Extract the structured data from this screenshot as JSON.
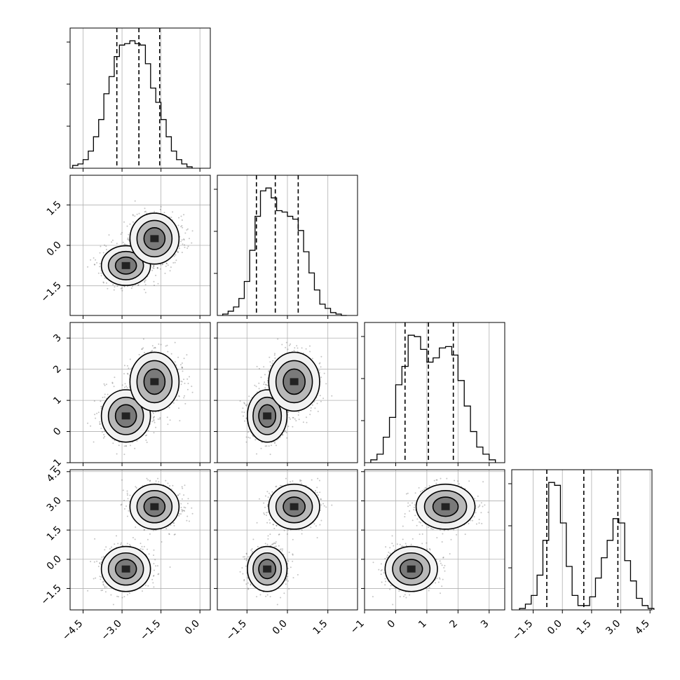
{
  "chart_data": {
    "type": "corner",
    "grid": true,
    "parameters": 4,
    "quantiles": [
      0.16,
      0.5,
      0.84
    ],
    "ranges": [
      [
        -5.0,
        0.4
      ],
      [
        -2.6,
        2.6
      ],
      [
        -1.0,
        3.5
      ],
      [
        -2.6,
        4.6
      ]
    ],
    "ticks": [
      {
        "values": [
          -4.5,
          -3.0,
          -1.5,
          0.0
        ],
        "labels": [
          "−4.5",
          "−3.0",
          "−1.5",
          "0.0"
        ]
      },
      {
        "values": [
          -1.5,
          0.0,
          1.5
        ],
        "labels": [
          "−1.5",
          "0.0",
          "1.5"
        ]
      },
      {
        "values": [
          -1,
          0,
          1,
          2,
          3
        ],
        "labels": [
          "−1",
          "0",
          "1",
          "2",
          "3"
        ]
      },
      {
        "values": [
          -1.5,
          0.0,
          1.5,
          3.0,
          4.5
        ],
        "labels": [
          "−1.5",
          "0.0",
          "1.5",
          "3.0",
          "4.5"
        ]
      }
    ],
    "histograms": [
      {
        "param": 0,
        "bin_edges": [
          -4.9,
          -4.7,
          -4.5,
          -4.3,
          -4.1,
          -3.9,
          -3.7,
          -3.5,
          -3.3,
          -3.1,
          -2.9,
          -2.7,
          -2.5,
          -2.3,
          -2.1,
          -1.9,
          -1.7,
          -1.5,
          -1.3,
          -1.1,
          -0.9,
          -0.7,
          -0.5,
          -0.3
        ],
        "counts": [
          2,
          3,
          6,
          12,
          22,
          34,
          52,
          64,
          78,
          86,
          87,
          89,
          87,
          86,
          73,
          56,
          46,
          34,
          22,
          12,
          6,
          3,
          1
        ],
        "quantiles": [
          -3.2,
          -2.35,
          -1.55
        ]
      },
      {
        "param": 1,
        "bin_edges": [
          -2.4,
          -2.2,
          -2.0,
          -1.8,
          -1.6,
          -1.4,
          -1.2,
          -1.0,
          -0.8,
          -0.6,
          -0.4,
          -0.2,
          0.0,
          0.2,
          0.4,
          0.6,
          0.8,
          1.0,
          1.2,
          1.4,
          1.6,
          1.8,
          2.0,
          2.2
        ],
        "counts": [
          1,
          3,
          6,
          12,
          24,
          46,
          70,
          88,
          90,
          83,
          74,
          73,
          70,
          68,
          60,
          45,
          30,
          18,
          8,
          5,
          2,
          1,
          0
        ],
        "quantiles": [
          -1.15,
          -0.45,
          0.4
        ]
      },
      {
        "param": 2,
        "bin_edges": [
          -0.8,
          -0.6,
          -0.4,
          -0.2,
          0.0,
          0.2,
          0.4,
          0.6,
          0.8,
          1.0,
          1.2,
          1.4,
          1.6,
          1.8,
          2.0,
          2.2,
          2.4,
          2.6,
          2.8,
          3.0,
          3.2
        ],
        "counts": [
          2,
          6,
          18,
          32,
          55,
          68,
          90,
          89,
          80,
          71,
          74,
          81,
          82,
          76,
          58,
          40,
          22,
          11,
          6,
          2
        ],
        "quantiles": [
          0.3,
          1.05,
          1.85
        ]
      },
      {
        "param": 3,
        "bin_edges": [
          -2.2,
          -1.9,
          -1.6,
          -1.3,
          -1.0,
          -0.7,
          -0.4,
          -0.1,
          0.2,
          0.5,
          0.8,
          1.1,
          1.4,
          1.7,
          2.0,
          2.3,
          2.6,
          2.9,
          3.2,
          3.5,
          3.8,
          4.1,
          4.4,
          4.7
        ],
        "counts": [
          1,
          4,
          10,
          24,
          48,
          88,
          86,
          60,
          30,
          10,
          3,
          3,
          9,
          22,
          36,
          48,
          63,
          60,
          34,
          20,
          8,
          3,
          1
        ],
        "quantiles": [
          -0.8,
          1.1,
          2.85
        ]
      }
    ],
    "modes": [
      {
        "center": [
          -2.85,
          -0.75,
          0.5,
          -0.5
        ],
        "sigma": [
          0.45,
          0.35,
          0.4,
          0.55
        ],
        "weight": 0.5
      },
      {
        "center": [
          -1.75,
          0.25,
          1.6,
          2.7
        ],
        "sigma": [
          0.45,
          0.45,
          0.45,
          0.55
        ],
        "weight": 0.5
      }
    ]
  }
}
